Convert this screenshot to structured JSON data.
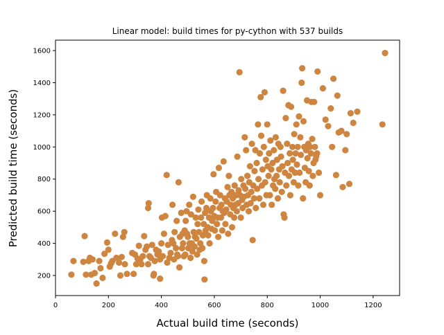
{
  "chart_data": {
    "type": "scatter",
    "title": "Linear model: build times for py-cython with 537 builds",
    "xlabel": "Actual build time (seconds)",
    "ylabel": "Predicted build time (seconds)",
    "xlim": [
      0,
      1300
    ],
    "ylim": [
      75,
      1665
    ],
    "xticks": [
      0,
      200,
      400,
      600,
      800,
      1000,
      1200
    ],
    "yticks": [
      200,
      400,
      600,
      800,
      1000,
      1200,
      1400,
      1600
    ],
    "grid": false,
    "color": "#cd853f",
    "series": [
      {
        "points": [
          [
            60,
            205
          ],
          [
            68,
            290
          ],
          [
            105,
            285
          ],
          [
            110,
            445
          ],
          [
            115,
            205
          ],
          [
            125,
            290
          ],
          [
            130,
            310
          ],
          [
            135,
            205
          ],
          [
            140,
            300
          ],
          [
            148,
            215
          ],
          [
            155,
            150
          ],
          [
            165,
            290
          ],
          [
            170,
            245
          ],
          [
            178,
            185
          ],
          [
            185,
            335
          ],
          [
            195,
            405
          ],
          [
            200,
            360
          ],
          [
            205,
            255
          ],
          [
            210,
            275
          ],
          [
            215,
            290
          ],
          [
            225,
            460
          ],
          [
            230,
            310
          ],
          [
            240,
            280
          ],
          [
            245,
            200
          ],
          [
            250,
            315
          ],
          [
            255,
            440
          ],
          [
            260,
            470
          ],
          [
            262,
            270
          ],
          [
            270,
            210
          ],
          [
            290,
            340
          ],
          [
            295,
            210
          ],
          [
            300,
            330
          ],
          [
            305,
            270
          ],
          [
            310,
            305
          ],
          [
            315,
            385
          ],
          [
            320,
            300
          ],
          [
            325,
            270
          ],
          [
            330,
            320
          ],
          [
            335,
            445
          ],
          [
            340,
            360
          ],
          [
            345,
            380
          ],
          [
            350,
            270
          ],
          [
            350,
            620
          ],
          [
            352,
            650
          ],
          [
            355,
            320
          ],
          [
            360,
            310
          ],
          [
            365,
            390
          ],
          [
            370,
            200
          ],
          [
            372,
            210
          ],
          [
            375,
            290
          ],
          [
            380,
            360
          ],
          [
            385,
            330
          ],
          [
            390,
            350
          ],
          [
            395,
            300
          ],
          [
            395,
            180
          ],
          [
            400,
            400
          ],
          [
            402,
            560
          ],
          [
            405,
            320
          ],
          [
            410,
            460
          ],
          [
            415,
            570
          ],
          [
            420,
            825
          ],
          [
            422,
            280
          ],
          [
            425,
            390
          ],
          [
            430,
            310
          ],
          [
            435,
            340
          ],
          [
            440,
            420
          ],
          [
            442,
            640
          ],
          [
            445,
            400
          ],
          [
            448,
            300
          ],
          [
            450,
            470
          ],
          [
            455,
            370
          ],
          [
            458,
            540
          ],
          [
            460,
            330
          ],
          [
            462,
            320
          ],
          [
            465,
            780
          ],
          [
            468,
            250
          ],
          [
            470,
            440
          ],
          [
            475,
            590
          ],
          [
            478,
            370
          ],
          [
            480,
            460
          ],
          [
            482,
            400
          ],
          [
            485,
            320
          ],
          [
            488,
            480
          ],
          [
            490,
            330
          ],
          [
            492,
            540
          ],
          [
            495,
            600
          ],
          [
            497,
            460
          ],
          [
            500,
            440
          ],
          [
            502,
            370
          ],
          [
            505,
            640
          ],
          [
            507,
            400
          ],
          [
            510,
            310
          ],
          [
            512,
            580
          ],
          [
            515,
            400
          ],
          [
            517,
            350
          ],
          [
            520,
            690
          ],
          [
            522,
            470
          ],
          [
            525,
            380
          ],
          [
            527,
            440
          ],
          [
            530,
            560
          ],
          [
            532,
            430
          ],
          [
            535,
            330
          ],
          [
            537,
            520
          ],
          [
            540,
            610
          ],
          [
            542,
            470
          ],
          [
            545,
            360
          ],
          [
            547,
            400
          ],
          [
            550,
            560
          ],
          [
            552,
            660
          ],
          [
            555,
            370
          ],
          [
            557,
            450
          ],
          [
            560,
            520
          ],
          [
            562,
            290
          ],
          [
            563,
            175
          ],
          [
            565,
            590
          ],
          [
            567,
            480
          ],
          [
            570,
            620
          ],
          [
            572,
            700
          ],
          [
            575,
            500
          ],
          [
            577,
            450
          ],
          [
            580,
            560
          ],
          [
            582,
            400
          ],
          [
            585,
            680
          ],
          [
            587,
            600
          ],
          [
            590,
            490
          ],
          [
            592,
            540
          ],
          [
            595,
            620
          ],
          [
            597,
            830
          ],
          [
            600,
            570
          ],
          [
            602,
            480
          ],
          [
            605,
            660
          ],
          [
            607,
            720
          ],
          [
            610,
            520
          ],
          [
            612,
            560
          ],
          [
            615,
            440
          ],
          [
            617,
            870
          ],
          [
            620,
            620
          ],
          [
            622,
            700
          ],
          [
            625,
            560
          ],
          [
            627,
            640
          ],
          [
            630,
            480
          ],
          [
            632,
            600
          ],
          [
            635,
            910
          ],
          [
            637,
            590
          ],
          [
            640,
            680
          ],
          [
            642,
            520
          ],
          [
            645,
            610
          ],
          [
            647,
            660
          ],
          [
            650,
            750
          ],
          [
            652,
            460
          ],
          [
            655,
            820
          ],
          [
            657,
            700
          ],
          [
            660,
            580
          ],
          [
            662,
            640
          ],
          [
            665,
            720
          ],
          [
            667,
            500
          ],
          [
            670,
            680
          ],
          [
            672,
            620
          ],
          [
            675,
            560
          ],
          [
            677,
            760
          ],
          [
            680,
            640
          ],
          [
            682,
            700
          ],
          [
            685,
            600
          ],
          [
            687,
            940
          ],
          [
            690,
            650
          ],
          [
            692,
            730
          ],
          [
            695,
            1465
          ],
          [
            697,
            700
          ],
          [
            700,
            560
          ],
          [
            702,
            800
          ],
          [
            705,
            670
          ],
          [
            707,
            620
          ],
          [
            710,
            760
          ],
          [
            712,
            690
          ],
          [
            715,
            1060
          ],
          [
            717,
            740
          ],
          [
            720,
            980
          ],
          [
            722,
            640
          ],
          [
            725,
            820
          ],
          [
            727,
            700
          ],
          [
            730,
            600
          ],
          [
            732,
            780
          ],
          [
            735,
            880
          ],
          [
            737,
            650
          ],
          [
            740,
            720
          ],
          [
            742,
            1020
          ],
          [
            745,
            420
          ],
          [
            747,
            760
          ],
          [
            750,
            680
          ],
          [
            752,
            850
          ],
          [
            755,
            980
          ],
          [
            757,
            620
          ],
          [
            760,
            900
          ],
          [
            762,
            740
          ],
          [
            765,
            1140
          ],
          [
            767,
            800
          ],
          [
            770,
            680
          ],
          [
            772,
            960
          ],
          [
            775,
            1310
          ],
          [
            777,
            1070
          ],
          [
            780,
            760
          ],
          [
            782,
            860
          ],
          [
            785,
            640
          ],
          [
            787,
            1000
          ],
          [
            790,
            1340
          ],
          [
            792,
            780
          ],
          [
            795,
            920
          ],
          [
            797,
            700
          ],
          [
            800,
            1140
          ],
          [
            802,
            880
          ],
          [
            805,
            820
          ],
          [
            807,
            960
          ],
          [
            810,
            700
          ],
          [
            812,
            1040
          ],
          [
            815,
            860
          ],
          [
            817,
            640
          ],
          [
            820,
            900
          ],
          [
            822,
            760
          ],
          [
            825,
            980
          ],
          [
            827,
            800
          ],
          [
            830,
            740
          ],
          [
            832,
            1060
          ],
          [
            835,
            820
          ],
          [
            837,
            920
          ],
          [
            840,
            680
          ],
          [
            842,
            1020
          ],
          [
            845,
            860
          ],
          [
            847,
            780
          ],
          [
            850,
            1000
          ],
          [
            852,
            940
          ],
          [
            855,
            720
          ],
          [
            857,
            880
          ],
          [
            860,
            1350
          ],
          [
            862,
            580
          ],
          [
            865,
            560
          ],
          [
            867,
            840
          ],
          [
            870,
            1180
          ],
          [
            872,
            760
          ],
          [
            875,
            1020
          ],
          [
            877,
            900
          ],
          [
            880,
            1260
          ],
          [
            882,
            820
          ],
          [
            885,
            960
          ],
          [
            887,
            700
          ],
          [
            890,
            1250
          ],
          [
            892,
            860
          ],
          [
            895,
            1000
          ],
          [
            897,
            920
          ],
          [
            900,
            780
          ],
          [
            902,
            1080
          ],
          [
            905,
            840
          ],
          [
            907,
            960
          ],
          [
            910,
            1140
          ],
          [
            912,
            890
          ],
          [
            915,
            1000
          ],
          [
            917,
            760
          ],
          [
            920,
            1190
          ],
          [
            922,
            840
          ],
          [
            925,
            1060
          ],
          [
            927,
            950
          ],
          [
            930,
            1400
          ],
          [
            932,
            1490
          ],
          [
            935,
            680
          ],
          [
            937,
            1160
          ],
          [
            940,
            1000
          ],
          [
            942,
            870
          ],
          [
            945,
            780
          ],
          [
            947,
            980
          ],
          [
            950,
            1290
          ],
          [
            952,
            930
          ],
          [
            955,
            1020
          ],
          [
            957,
            850
          ],
          [
            960,
            760
          ],
          [
            962,
            1000
          ],
          [
            965,
            960
          ],
          [
            967,
            1280
          ],
          [
            970,
            1050
          ],
          [
            972,
            820
          ],
          [
            975,
            900
          ],
          [
            977,
            1280
          ],
          [
            980,
            1000
          ],
          [
            982,
            920
          ],
          [
            985,
            940
          ],
          [
            988,
            960
          ],
          [
            990,
            1470
          ],
          [
            995,
            840
          ],
          [
            1000,
            700
          ],
          [
            1010,
            1365
          ],
          [
            1020,
            1170
          ],
          [
            1030,
            1130
          ],
          [
            1040,
            1240
          ],
          [
            1045,
            1000
          ],
          [
            1050,
            1425
          ],
          [
            1060,
            825
          ],
          [
            1065,
            1320
          ],
          [
            1070,
            1090
          ],
          [
            1080,
            1100
          ],
          [
            1085,
            750
          ],
          [
            1095,
            980
          ],
          [
            1100,
            1080
          ],
          [
            1110,
            770
          ],
          [
            1115,
            1210
          ],
          [
            1125,
            1150
          ],
          [
            1140,
            1220
          ],
          [
            1235,
            1140
          ],
          [
            1245,
            1585
          ]
        ]
      }
    ]
  }
}
